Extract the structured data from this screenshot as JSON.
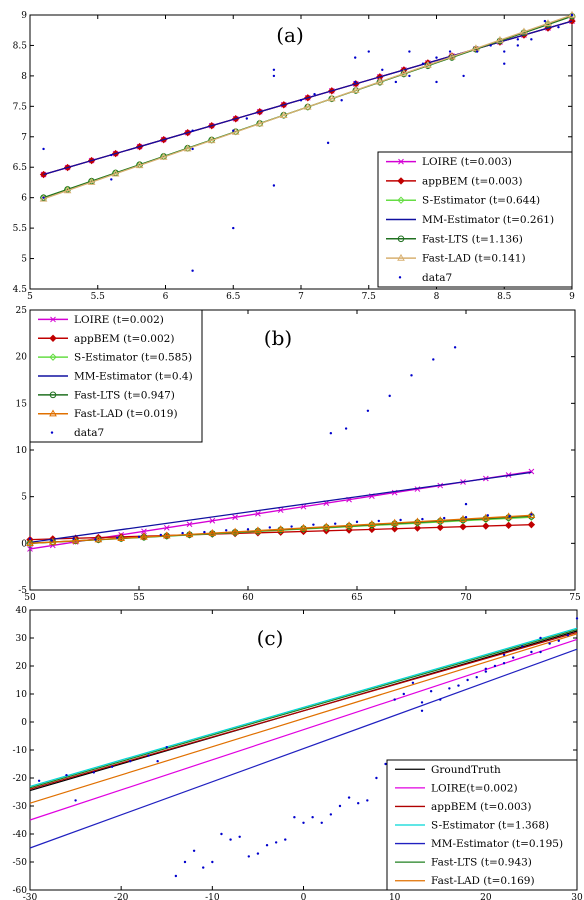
{
  "chart_data": [
    {
      "type": "line",
      "panel_label": "(a)",
      "xlim": [
        5,
        9
      ],
      "ylim": [
        4.5,
        9
      ],
      "xticks": [
        "5",
        "5.5",
        "6",
        "6.5",
        "7",
        "7.5",
        "8",
        "8.5",
        "9"
      ],
      "yticks": [
        "4.5",
        "5",
        "5.5",
        "6",
        "6.5",
        "7",
        "7.5",
        "8",
        "8.5",
        "9"
      ],
      "legend_position": "bottom-right",
      "series": [
        {
          "name": "LOIRE (t=0.003)",
          "color": "#d400d4",
          "marker": "x",
          "x": [
            5.1,
            9.0
          ],
          "y": [
            6.38,
            8.9
          ]
        },
        {
          "name": "appBEM (t=0.003)",
          "color": "#c00000",
          "marker": "diamond",
          "x": [
            5.1,
            9.0
          ],
          "y": [
            6.38,
            8.9
          ]
        },
        {
          "name": "S-Estimator (t=0.644)",
          "color": "#66dd44",
          "marker": "diamond",
          "x": [
            5.1,
            9.0
          ],
          "y": [
            6.0,
            8.98
          ]
        },
        {
          "name": "MM-Estimator (t=0.261)",
          "color": "#1010a0",
          "marker": "none",
          "x": [
            5.1,
            9.0
          ],
          "y": [
            6.38,
            8.9
          ]
        },
        {
          "name": "Fast-LTS (t=1.136)",
          "color": "#207020",
          "marker": "circle",
          "x": [
            5.1,
            9.0
          ],
          "y": [
            6.0,
            8.98
          ]
        },
        {
          "name": "Fast-LAD (t=0.141)",
          "color": "#d8b070",
          "marker": "triangle",
          "x": [
            5.1,
            9.0
          ],
          "y": [
            5.98,
            9.0
          ]
        },
        {
          "name": "data7",
          "color": "#0000cc",
          "marker": "dot",
          "scatter": true,
          "points": [
            [
              5.1,
              6.8
            ],
            [
              5.1,
              6.0
            ],
            [
              5.6,
              6.7
            ],
            [
              5.6,
              6.3
            ],
            [
              6.2,
              7.1
            ],
            [
              6.2,
              6.8
            ],
            [
              6.2,
              4.8
            ],
            [
              6.5,
              5.5
            ],
            [
              6.5,
              7.1
            ],
            [
              6.6,
              7.3
            ],
            [
              6.8,
              6.2
            ],
            [
              6.8,
              8.0
            ],
            [
              6.8,
              8.1
            ],
            [
              7.0,
              7.6
            ],
            [
              7.1,
              7.7
            ],
            [
              7.2,
              6.9
            ],
            [
              7.3,
              7.6
            ],
            [
              7.4,
              8.3
            ],
            [
              7.4,
              7.9
            ],
            [
              7.5,
              8.4
            ],
            [
              7.6,
              8.1
            ],
            [
              7.7,
              7.9
            ],
            [
              7.8,
              8.4
            ],
            [
              7.8,
              8.0
            ],
            [
              7.9,
              8.2
            ],
            [
              8.0,
              8.3
            ],
            [
              8.0,
              7.9
            ],
            [
              8.1,
              8.4
            ],
            [
              8.2,
              8.0
            ],
            [
              8.3,
              8.4
            ],
            [
              8.4,
              8.5
            ],
            [
              8.5,
              8.4
            ],
            [
              8.5,
              8.2
            ],
            [
              8.6,
              8.6
            ],
            [
              8.7,
              8.6
            ],
            [
              8.8,
              9.1
            ],
            [
              8.9,
              8.8
            ],
            [
              9.0,
              9.0
            ],
            [
              8.8,
              8.9
            ],
            [
              8.6,
              8.5
            ]
          ]
        }
      ]
    },
    {
      "type": "line",
      "panel_label": "(b)",
      "xlim": [
        50,
        75
      ],
      "ylim": [
        -5,
        25
      ],
      "xticks": [
        "50",
        "55",
        "60",
        "65",
        "70",
        "75"
      ],
      "yticks": [
        "-5",
        "0",
        "5",
        "10",
        "15",
        "20",
        "25"
      ],
      "legend_position": "top-left",
      "series": [
        {
          "name": "LOIRE (t=0.002)",
          "color": "#d400d4",
          "marker": "x",
          "x": [
            50,
            73
          ],
          "y": [
            -0.6,
            7.7
          ]
        },
        {
          "name": "appBEM (t=0.002)",
          "color": "#c00000",
          "marker": "diamond",
          "x": [
            50,
            73
          ],
          "y": [
            0.4,
            2.0
          ]
        },
        {
          "name": "S-Estimator (t=0.585)",
          "color": "#66dd44",
          "marker": "diamond",
          "x": [
            50,
            73
          ],
          "y": [
            0.0,
            2.8
          ]
        },
        {
          "name": "MM-Estimator (t=0.4)",
          "color": "#1010a0",
          "marker": "none",
          "x": [
            50,
            73
          ],
          "y": [
            0.1,
            7.6
          ]
        },
        {
          "name": "Fast-LTS (t=0.947)",
          "color": "#207020",
          "marker": "circle",
          "x": [
            50,
            73
          ],
          "y": [
            0.0,
            2.9
          ]
        },
        {
          "name": "Fast-LAD (t=0.019)",
          "color": "#e07000",
          "marker": "triangle",
          "x": [
            50,
            73
          ],
          "y": [
            0.0,
            3.0
          ]
        },
        {
          "name": "data7",
          "color": "#0000cc",
          "marker": "dot",
          "scatter": true,
          "points": [
            [
              50,
              0.5
            ],
            [
              51,
              0.3
            ],
            [
              52,
              0.5
            ],
            [
              53,
              0.4
            ],
            [
              54,
              0.6
            ],
            [
              55,
              0.7
            ],
            [
              56,
              0.9
            ],
            [
              57,
              1.1
            ],
            [
              58,
              1.2
            ],
            [
              59,
              1.4
            ],
            [
              60,
              1.5
            ],
            [
              61,
              1.7
            ],
            [
              62,
              1.8
            ],
            [
              63,
              2.0
            ],
            [
              64,
              2.1
            ],
            [
              65,
              2.3
            ],
            [
              66,
              2.4
            ],
            [
              67,
              2.5
            ],
            [
              68,
              2.6
            ],
            [
              69,
              2.7
            ],
            [
              70,
              2.8
            ],
            [
              71,
              3.0
            ],
            [
              72,
              2.9
            ],
            [
              73,
              3.1
            ],
            [
              63.8,
              11.8
            ],
            [
              64.5,
              12.3
            ],
            [
              65.5,
              14.2
            ],
            [
              66.5,
              15.8
            ],
            [
              67.5,
              18.0
            ],
            [
              68.5,
              19.7
            ],
            [
              69.5,
              21.0
            ],
            [
              70,
              4.2
            ]
          ]
        }
      ]
    },
    {
      "type": "line",
      "panel_label": "(c)",
      "xlim": [
        -30,
        30
      ],
      "ylim": [
        -60,
        40
      ],
      "xticks": [
        "-30",
        "-20",
        "-10",
        "0",
        "10",
        "20",
        "30"
      ],
      "yticks": [
        "-60",
        "-50",
        "-40",
        "-30",
        "-20",
        "-10",
        "0",
        "10",
        "20",
        "30",
        "40"
      ],
      "legend_position": "bottom-right",
      "series": [
        {
          "name": "GroundTruth",
          "color": "#000000",
          "marker": "none",
          "x": [
            -30,
            30
          ],
          "y": [
            -24.5,
            32.5
          ]
        },
        {
          "name": "LOIRE(t=0.002)",
          "color": "#e000e0",
          "marker": "none",
          "x": [
            -30,
            30
          ],
          "y": [
            -35,
            29.5
          ]
        },
        {
          "name": "appBEM (t=0.003)",
          "color": "#b00000",
          "marker": "none",
          "x": [
            -30,
            30
          ],
          "y": [
            -24,
            32
          ]
        },
        {
          "name": "S-Estimator (t=1.368)",
          "color": "#00d8d8",
          "marker": "none",
          "x": [
            -30,
            30
          ],
          "y": [
            -23,
            33.5
          ]
        },
        {
          "name": "MM-Estimator (t=0.195)",
          "color": "#2020c0",
          "marker": "none",
          "x": [
            -30,
            30
          ],
          "y": [
            -45,
            26
          ]
        },
        {
          "name": "Fast-LTS (t=0.943)",
          "color": "#208020",
          "marker": "none",
          "x": [
            -30,
            30
          ],
          "y": [
            -23.5,
            33
          ]
        },
        {
          "name": "Fast-LAD (t=0.169)",
          "color": "#e07000",
          "marker": "none",
          "x": [
            -30,
            30
          ],
          "y": [
            -29,
            31.5
          ]
        },
        {
          "name": "",
          "color": "#0000cc",
          "marker": "dot",
          "scatter": true,
          "points": [
            [
              -29,
              -21
            ],
            [
              -26,
              -19
            ],
            [
              -25,
              -28
            ],
            [
              -23,
              -18
            ],
            [
              -21,
              -16
            ],
            [
              -19,
              -14
            ],
            [
              -17,
              -12
            ],
            [
              -15,
              -9
            ],
            [
              -16,
              -14
            ],
            [
              -14,
              -55
            ],
            [
              -13,
              -50
            ],
            [
              -12,
              -46
            ],
            [
              -11,
              -52
            ],
            [
              -10,
              -50
            ],
            [
              -9,
              -40
            ],
            [
              -8,
              -42
            ],
            [
              -7,
              -41
            ],
            [
              -6,
              -48
            ],
            [
              -5,
              -47
            ],
            [
              -4,
              -44
            ],
            [
              -3,
              -43
            ],
            [
              -2,
              -42
            ],
            [
              -1,
              -34
            ],
            [
              0,
              -36
            ],
            [
              1,
              -34
            ],
            [
              2,
              -36
            ],
            [
              3,
              -33
            ],
            [
              4,
              -30
            ],
            [
              5,
              -27
            ],
            [
              6,
              -29
            ],
            [
              7,
              -28
            ],
            [
              8,
              -20
            ],
            [
              9,
              -15
            ],
            [
              10,
              8
            ],
            [
              11,
              10
            ],
            [
              12,
              14
            ],
            [
              13,
              7
            ],
            [
              14,
              11
            ],
            [
              15,
              8
            ],
            [
              16,
              12
            ],
            [
              17,
              13
            ],
            [
              18,
              15
            ],
            [
              19,
              16
            ],
            [
              20,
              18
            ],
            [
              21,
              20
            ],
            [
              22,
              21
            ],
            [
              23,
              23
            ],
            [
              24,
              27
            ],
            [
              25,
              25
            ],
            [
              26,
              25
            ],
            [
              27,
              28
            ],
            [
              28,
              29
            ],
            [
              29,
              31
            ],
            [
              30,
              37
            ],
            [
              13,
              4
            ],
            [
              20,
              19
            ],
            [
              22,
              24
            ],
            [
              26,
              30
            ]
          ]
        }
      ]
    }
  ]
}
